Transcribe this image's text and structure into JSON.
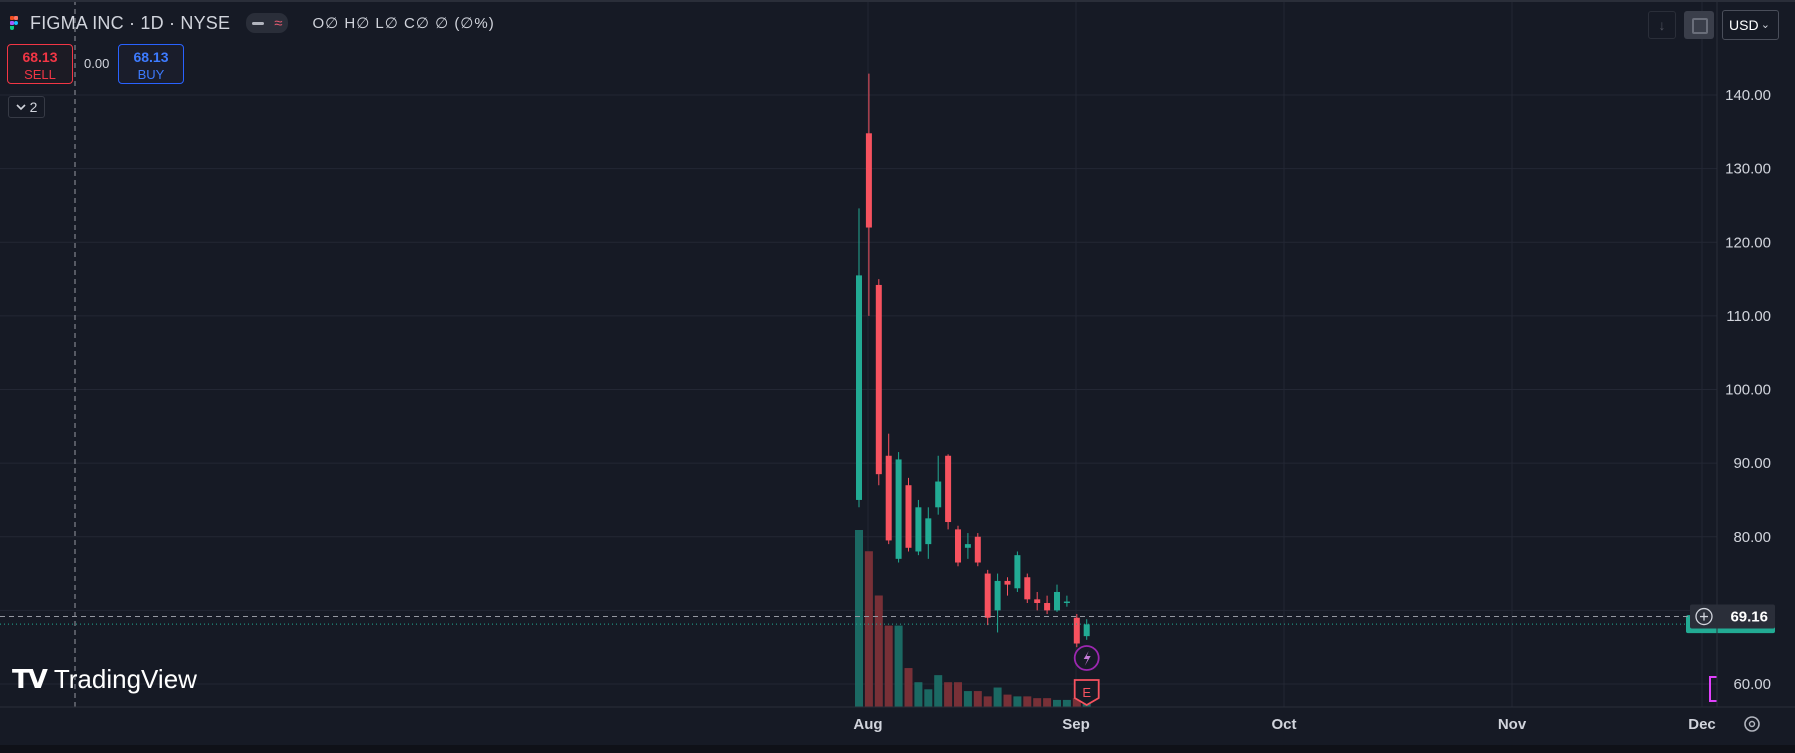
{
  "header": {
    "title": "FIGMA INC · 1D · NYSE",
    "ohlc": "O∅ H∅ L∅ C∅ ∅ (∅%)",
    "wave_symbol": "≈"
  },
  "trade": {
    "sell_price": "68.13",
    "sell_label": "SELL",
    "spread": "0.00",
    "buy_price": "68.13",
    "buy_label": "BUY"
  },
  "collapse_count": "2",
  "currency": "USD",
  "watermark": "TradingView",
  "price_axis": {
    "ticks": [
      "140.00",
      "130.00",
      "120.00",
      "110.00",
      "100.00",
      "90.00",
      "80.00",
      "60.00"
    ]
  },
  "time_axis": {
    "ticks": [
      "Aug",
      "Sep",
      "Oct",
      "Nov",
      "Dec"
    ]
  },
  "crosshair_price": "69.16",
  "markers": {
    "split_icon": "lightning-icon",
    "earnings_label": "E"
  },
  "colors": {
    "up": "#22ab94",
    "down": "#f7525f",
    "background": "#161a25",
    "grid": "#232734"
  },
  "chart_data": {
    "type": "candlestick",
    "title": "FIGMA INC · 1D · NYSE",
    "ylim": [
      57,
      144
    ],
    "x_ticks": [
      "Aug",
      "Sep",
      "Oct",
      "Nov",
      "Dec"
    ],
    "last_price": 68.13,
    "crosshair_value": 69.16,
    "candles": [
      {
        "o": 85.0,
        "h": 124.6,
        "l": 84.0,
        "c": 115.5,
        "v": 1.0
      },
      {
        "o": 134.8,
        "h": 142.9,
        "l": 110.0,
        "c": 122.0,
        "v": 0.88
      },
      {
        "o": 114.2,
        "h": 115.0,
        "l": 87.0,
        "c": 88.5,
        "v": 0.63
      },
      {
        "o": 91.0,
        "h": 94.0,
        "l": 79.0,
        "c": 79.5,
        "v": 0.46
      },
      {
        "o": 77.0,
        "h": 91.5,
        "l": 76.5,
        "c": 90.5,
        "v": 0.46
      },
      {
        "o": 87.0,
        "h": 88.0,
        "l": 78.0,
        "c": 78.5,
        "v": 0.22
      },
      {
        "o": 78.0,
        "h": 85.0,
        "l": 77.5,
        "c": 84.0,
        "v": 0.14
      },
      {
        "o": 79.0,
        "h": 84.0,
        "l": 77.0,
        "c": 82.5,
        "v": 0.1
      },
      {
        "o": 84.0,
        "h": 91.0,
        "l": 83.0,
        "c": 87.5,
        "v": 0.18
      },
      {
        "o": 91.0,
        "h": 91.2,
        "l": 81.0,
        "c": 82.0,
        "v": 0.14
      },
      {
        "o": 81.0,
        "h": 81.5,
        "l": 76.0,
        "c": 76.5,
        "v": 0.14
      },
      {
        "o": 78.5,
        "h": 80.5,
        "l": 77.0,
        "c": 79.0,
        "v": 0.09
      },
      {
        "o": 80.0,
        "h": 80.5,
        "l": 76.0,
        "c": 76.5,
        "v": 0.09
      },
      {
        "o": 75.0,
        "h": 75.5,
        "l": 68.0,
        "c": 69.0,
        "v": 0.06
      },
      {
        "o": 70.0,
        "h": 75.0,
        "l": 67.0,
        "c": 74.0,
        "v": 0.11
      },
      {
        "o": 74.0,
        "h": 74.5,
        "l": 72.0,
        "c": 73.5,
        "v": 0.07
      },
      {
        "o": 73.0,
        "h": 78.0,
        "l": 72.5,
        "c": 77.5,
        "v": 0.06
      },
      {
        "o": 74.5,
        "h": 75.0,
        "l": 71.0,
        "c": 71.5,
        "v": 0.06
      },
      {
        "o": 71.5,
        "h": 72.5,
        "l": 70.0,
        "c": 71.0,
        "v": 0.05
      },
      {
        "o": 71.0,
        "h": 72.0,
        "l": 69.5,
        "c": 70.0,
        "v": 0.05
      },
      {
        "o": 70.0,
        "h": 73.5,
        "l": 69.8,
        "c": 72.5,
        "v": 0.04
      },
      {
        "o": 71.0,
        "h": 72.0,
        "l": 70.5,
        "c": 71.2,
        "v": 0.04
      },
      {
        "o": 69.0,
        "h": 69.5,
        "l": 65.0,
        "c": 65.5,
        "v": 0.05
      },
      {
        "o": 66.5,
        "h": 68.8,
        "l": 66.0,
        "c": 68.1,
        "v": 0.1
      }
    ]
  }
}
